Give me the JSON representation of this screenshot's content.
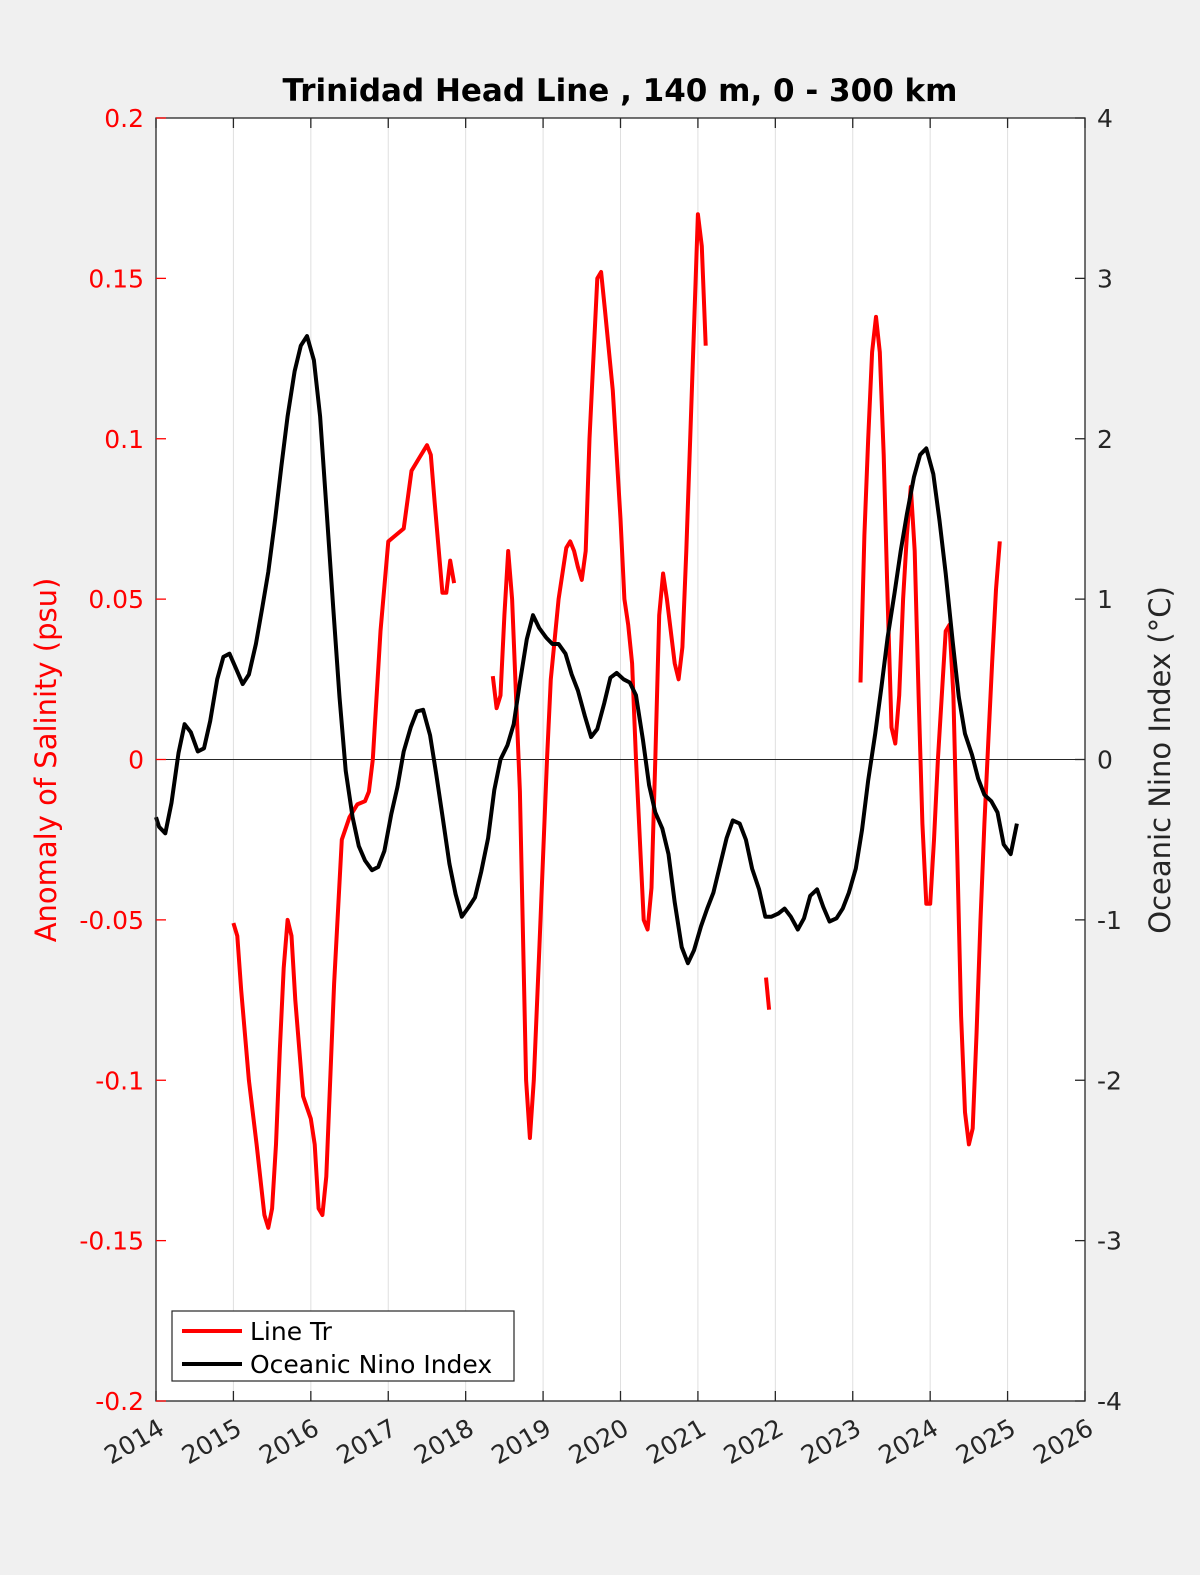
{
  "chart_data": {
    "type": "line",
    "title": "Trinidad Head Line , 140 m, 0 - 300 km",
    "ylabel_left": "Anomaly of Salinity (psu)",
    "ylabel_right": "Oceanic Nino Index (°C)",
    "xlim": [
      2014,
      2026
    ],
    "ylim_left": [
      -0.2,
      0.2
    ],
    "ylim_right": [
      -4,
      4
    ],
    "x_ticks": [
      "2014",
      "2015",
      "2016",
      "2017",
      "2018",
      "2019",
      "2020",
      "2021",
      "2022",
      "2023",
      "2024",
      "2025",
      "2026"
    ],
    "y_ticks_left": [
      "-0.2",
      "-0.15",
      "-0.1",
      "-0.05",
      "0",
      "0.05",
      "0.1",
      "0.15",
      "0.2"
    ],
    "y_ticks_right": [
      "-4",
      "-3",
      "-2",
      "-1",
      "0",
      "1",
      "2",
      "3",
      "4"
    ],
    "grid": "vertical",
    "zero_line": true,
    "legend_position": "bottom-left",
    "series": [
      {
        "name": "Line Tr",
        "axis": "left",
        "color": "#ff0000",
        "segments": [
          [
            [
              2015.0,
              -0.051
            ],
            [
              2015.05,
              -0.055
            ],
            [
              2015.1,
              -0.072
            ],
            [
              2015.2,
              -0.1
            ],
            [
              2015.3,
              -0.12
            ],
            [
              2015.4,
              -0.142
            ],
            [
              2015.45,
              -0.146
            ],
            [
              2015.5,
              -0.14
            ],
            [
              2015.55,
              -0.12
            ],
            [
              2015.6,
              -0.09
            ],
            [
              2015.65,
              -0.065
            ],
            [
              2015.7,
              -0.05
            ],
            [
              2015.75,
              -0.055
            ],
            [
              2015.8,
              -0.075
            ],
            [
              2015.9,
              -0.105
            ],
            [
              2016.0,
              -0.112
            ],
            [
              2016.05,
              -0.12
            ],
            [
              2016.1,
              -0.14
            ],
            [
              2016.15,
              -0.142
            ],
            [
              2016.2,
              -0.13
            ],
            [
              2016.3,
              -0.07
            ],
            [
              2016.4,
              -0.025
            ],
            [
              2016.5,
              -0.018
            ],
            [
              2016.6,
              -0.014
            ],
            [
              2016.7,
              -0.013
            ],
            [
              2016.75,
              -0.01
            ],
            [
              2016.8,
              0.0
            ],
            [
              2016.9,
              0.04
            ],
            [
              2017.0,
              0.068
            ],
            [
              2017.1,
              0.07
            ],
            [
              2017.2,
              0.072
            ],
            [
              2017.3,
              0.09
            ],
            [
              2017.4,
              0.094
            ],
            [
              2017.5,
              0.098
            ],
            [
              2017.55,
              0.095
            ],
            [
              2017.6,
              0.08
            ],
            [
              2017.7,
              0.052
            ],
            [
              2017.75,
              0.052
            ],
            [
              2017.8,
              0.062
            ],
            [
              2017.85,
              0.055
            ]
          ],
          [
            [
              2018.35,
              0.026
            ],
            [
              2018.4,
              0.016
            ],
            [
              2018.45,
              0.02
            ],
            [
              2018.5,
              0.045
            ],
            [
              2018.55,
              0.065
            ],
            [
              2018.6,
              0.05
            ],
            [
              2018.7,
              -0.01
            ],
            [
              2018.78,
              -0.1
            ],
            [
              2018.83,
              -0.118
            ],
            [
              2018.88,
              -0.1
            ],
            [
              2018.95,
              -0.06
            ],
            [
              2019.0,
              -0.03
            ],
            [
              2019.05,
              0.0
            ],
            [
              2019.1,
              0.025
            ],
            [
              2019.2,
              0.05
            ],
            [
              2019.3,
              0.066
            ],
            [
              2019.35,
              0.068
            ],
            [
              2019.4,
              0.065
            ],
            [
              2019.45,
              0.06
            ],
            [
              2019.5,
              0.056
            ],
            [
              2019.55,
              0.065
            ],
            [
              2019.6,
              0.1
            ],
            [
              2019.7,
              0.15
            ],
            [
              2019.75,
              0.152
            ],
            [
              2019.8,
              0.14
            ],
            [
              2019.9,
              0.115
            ],
            [
              2020.0,
              0.075
            ],
            [
              2020.05,
              0.05
            ],
            [
              2020.1,
              0.042
            ],
            [
              2020.15,
              0.03
            ],
            [
              2020.2,
              0.0
            ],
            [
              2020.3,
              -0.05
            ],
            [
              2020.35,
              -0.053
            ],
            [
              2020.4,
              -0.04
            ],
            [
              2020.45,
              0.0
            ],
            [
              2020.5,
              0.045
            ],
            [
              2020.55,
              0.058
            ],
            [
              2020.6,
              0.05
            ],
            [
              2020.7,
              0.03
            ],
            [
              2020.75,
              0.025
            ],
            [
              2020.8,
              0.035
            ],
            [
              2020.85,
              0.065
            ],
            [
              2020.9,
              0.1
            ],
            [
              2021.0,
              0.17
            ],
            [
              2021.05,
              0.16
            ],
            [
              2021.1,
              0.129
            ]
          ],
          [
            [
              2021.88,
              -0.068
            ],
            [
              2021.92,
              -0.078
            ]
          ],
          [
            [
              2023.1,
              0.024
            ],
            [
              2023.15,
              0.07
            ],
            [
              2023.2,
              0.1
            ],
            [
              2023.25,
              0.127
            ],
            [
              2023.3,
              0.138
            ],
            [
              2023.35,
              0.127
            ],
            [
              2023.4,
              0.095
            ],
            [
              2023.45,
              0.05
            ],
            [
              2023.5,
              0.01
            ],
            [
              2023.55,
              0.005
            ],
            [
              2023.6,
              0.02
            ],
            [
              2023.65,
              0.05
            ],
            [
              2023.7,
              0.07
            ],
            [
              2023.75,
              0.085
            ],
            [
              2023.8,
              0.065
            ],
            [
              2023.85,
              0.02
            ],
            [
              2023.9,
              -0.02
            ],
            [
              2023.95,
              -0.045
            ],
            [
              2024.0,
              -0.045
            ],
            [
              2024.05,
              -0.025
            ],
            [
              2024.1,
              0.0
            ],
            [
              2024.15,
              0.02
            ],
            [
              2024.2,
              0.04
            ],
            [
              2024.25,
              0.042
            ],
            [
              2024.3,
              0.02
            ],
            [
              2024.35,
              -0.03
            ],
            [
              2024.4,
              -0.08
            ],
            [
              2024.45,
              -0.11
            ],
            [
              2024.5,
              -0.12
            ],
            [
              2024.55,
              -0.115
            ],
            [
              2024.6,
              -0.085
            ],
            [
              2024.65,
              -0.05
            ],
            [
              2024.7,
              -0.02
            ],
            [
              2024.75,
              0.005
            ],
            [
              2024.8,
              0.03
            ],
            [
              2024.85,
              0.053
            ],
            [
              2024.9,
              0.068
            ]
          ]
        ]
      },
      {
        "name": "Oceanic Nino Index",
        "axis": "right",
        "color": "#000000",
        "segments": [
          [
            [
              2014.0,
              -0.36
            ],
            [
              2014.04,
              -0.42
            ],
            [
              2014.12,
              -0.46
            ],
            [
              2014.2,
              -0.27
            ],
            [
              2014.29,
              0.04
            ],
            [
              2014.37,
              0.22
            ],
            [
              2014.45,
              0.17
            ],
            [
              2014.54,
              0.05
            ],
            [
              2014.62,
              0.07
            ],
            [
              2014.7,
              0.24
            ],
            [
              2014.79,
              0.5
            ],
            [
              2014.87,
              0.64
            ],
            [
              2014.95,
              0.66
            ],
            [
              2015.04,
              0.56
            ],
            [
              2015.12,
              0.47
            ],
            [
              2015.2,
              0.53
            ],
            [
              2015.29,
              0.72
            ],
            [
              2015.37,
              0.94
            ],
            [
              2015.45,
              1.17
            ],
            [
              2015.54,
              1.5
            ],
            [
              2015.62,
              1.83
            ],
            [
              2015.7,
              2.14
            ],
            [
              2015.79,
              2.42
            ],
            [
              2015.87,
              2.58
            ],
            [
              2015.95,
              2.64
            ],
            [
              2016.04,
              2.49
            ],
            [
              2016.12,
              2.14
            ],
            [
              2016.2,
              1.58
            ],
            [
              2016.29,
              0.94
            ],
            [
              2016.37,
              0.39
            ],
            [
              2016.45,
              -0.07
            ],
            [
              2016.54,
              -0.36
            ],
            [
              2016.62,
              -0.54
            ],
            [
              2016.7,
              -0.63
            ],
            [
              2016.79,
              -0.69
            ],
            [
              2016.87,
              -0.67
            ],
            [
              2016.95,
              -0.57
            ],
            [
              2017.04,
              -0.34
            ],
            [
              2017.12,
              -0.17
            ],
            [
              2017.2,
              0.05
            ],
            [
              2017.29,
              0.2
            ],
            [
              2017.37,
              0.3
            ],
            [
              2017.45,
              0.31
            ],
            [
              2017.54,
              0.15
            ],
            [
              2017.62,
              -0.09
            ],
            [
              2017.7,
              -0.35
            ],
            [
              2017.79,
              -0.65
            ],
            [
              2017.87,
              -0.84
            ],
            [
              2017.95,
              -0.98
            ],
            [
              2018.04,
              -0.92
            ],
            [
              2018.12,
              -0.86
            ],
            [
              2018.2,
              -0.7
            ],
            [
              2018.29,
              -0.49
            ],
            [
              2018.37,
              -0.19
            ],
            [
              2018.45,
              0.0
            ],
            [
              2018.54,
              0.09
            ],
            [
              2018.62,
              0.22
            ],
            [
              2018.7,
              0.48
            ],
            [
              2018.79,
              0.75
            ],
            [
              2018.87,
              0.9
            ],
            [
              2018.95,
              0.82
            ],
            [
              2019.04,
              0.76
            ],
            [
              2019.12,
              0.72
            ],
            [
              2019.2,
              0.72
            ],
            [
              2019.29,
              0.66
            ],
            [
              2019.37,
              0.53
            ],
            [
              2019.45,
              0.43
            ],
            [
              2019.54,
              0.27
            ],
            [
              2019.62,
              0.14
            ],
            [
              2019.7,
              0.19
            ],
            [
              2019.79,
              0.35
            ],
            [
              2019.87,
              0.51
            ],
            [
              2019.95,
              0.54
            ],
            [
              2020.04,
              0.5
            ],
            [
              2020.12,
              0.48
            ],
            [
              2020.2,
              0.4
            ],
            [
              2020.29,
              0.12
            ],
            [
              2020.37,
              -0.16
            ],
            [
              2020.45,
              -0.33
            ],
            [
              2020.54,
              -0.43
            ],
            [
              2020.62,
              -0.59
            ],
            [
              2020.7,
              -0.89
            ],
            [
              2020.79,
              -1.17
            ],
            [
              2020.87,
              -1.27
            ],
            [
              2020.95,
              -1.19
            ],
            [
              2021.04,
              -1.04
            ],
            [
              2021.12,
              -0.93
            ],
            [
              2021.2,
              -0.83
            ],
            [
              2021.29,
              -0.65
            ],
            [
              2021.37,
              -0.49
            ],
            [
              2021.45,
              -0.38
            ],
            [
              2021.54,
              -0.4
            ],
            [
              2021.62,
              -0.5
            ],
            [
              2021.7,
              -0.68
            ],
            [
              2021.79,
              -0.81
            ],
            [
              2021.87,
              -0.98
            ],
            [
              2021.95,
              -0.98
            ],
            [
              2022.04,
              -0.96
            ],
            [
              2022.12,
              -0.93
            ],
            [
              2022.2,
              -0.98
            ],
            [
              2022.29,
              -1.06
            ],
            [
              2022.37,
              -0.99
            ],
            [
              2022.45,
              -0.85
            ],
            [
              2022.54,
              -0.81
            ],
            [
              2022.62,
              -0.92
            ],
            [
              2022.7,
              -1.01
            ],
            [
              2022.79,
              -0.99
            ],
            [
              2022.87,
              -0.93
            ],
            [
              2022.95,
              -0.83
            ],
            [
              2023.04,
              -0.68
            ],
            [
              2023.12,
              -0.44
            ],
            [
              2023.2,
              -0.13
            ],
            [
              2023.29,
              0.16
            ],
            [
              2023.37,
              0.45
            ],
            [
              2023.45,
              0.76
            ],
            [
              2023.54,
              1.04
            ],
            [
              2023.62,
              1.3
            ],
            [
              2023.7,
              1.53
            ],
            [
              2023.79,
              1.76
            ],
            [
              2023.87,
              1.9
            ],
            [
              2023.95,
              1.94
            ],
            [
              2024.04,
              1.78
            ],
            [
              2024.12,
              1.49
            ],
            [
              2024.2,
              1.16
            ],
            [
              2024.29,
              0.74
            ],
            [
              2024.37,
              0.39
            ],
            [
              2024.45,
              0.16
            ],
            [
              2024.54,
              0.03
            ],
            [
              2024.62,
              -0.12
            ],
            [
              2024.7,
              -0.22
            ],
            [
              2024.79,
              -0.26
            ],
            [
              2024.87,
              -0.33
            ],
            [
              2024.95,
              -0.53
            ],
            [
              2025.04,
              -0.59
            ],
            [
              2025.12,
              -0.4
            ]
          ]
        ]
      }
    ]
  }
}
